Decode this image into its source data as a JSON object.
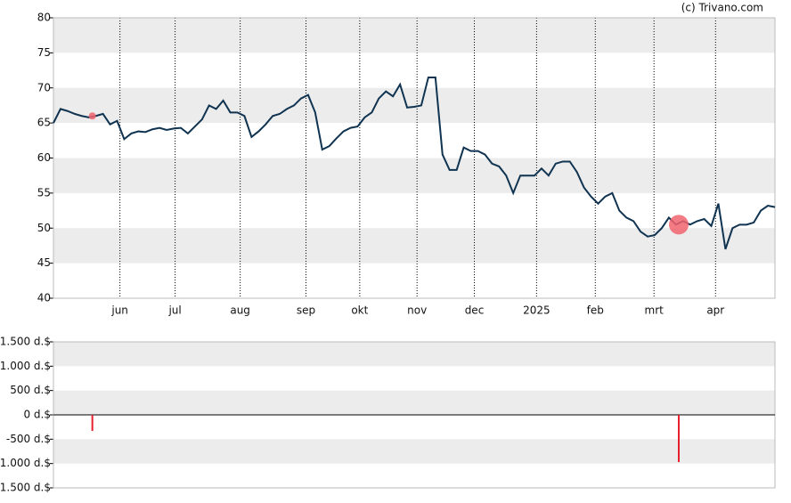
{
  "watermark": "(c) Trivano.com",
  "chart_data": [
    {
      "type": "line",
      "xlim": [
        0,
        102
      ],
      "xticks": [
        {
          "value": 9.4,
          "label": "jun"
        },
        {
          "value": 17.2,
          "label": "jul"
        },
        {
          "value": 26.4,
          "label": "aug"
        },
        {
          "value": 35.7,
          "label": "sep"
        },
        {
          "value": 43.3,
          "label": "okt"
        },
        {
          "value": 51.4,
          "label": "nov"
        },
        {
          "value": 59.5,
          "label": "dec"
        },
        {
          "value": 68.3,
          "label": "2025"
        },
        {
          "value": 76.6,
          "label": "feb"
        },
        {
          "value": 84.9,
          "label": "mrt"
        },
        {
          "value": 93.6,
          "label": "apr"
        }
      ],
      "ylim": [
        40,
        80
      ],
      "yticks": [
        40,
        45,
        50,
        55,
        60,
        65,
        70,
        75,
        80
      ],
      "grid": true,
      "series": [
        {
          "color": "#0f3350",
          "values": [
            65,
            67,
            66.7,
            66.3,
            66,
            65.8,
            66,
            66.3,
            64.8,
            65.3,
            62.7,
            63.5,
            63.8,
            63.7,
            64.1,
            64.3,
            64,
            64.2,
            64.3,
            63.5,
            64.5,
            65.5,
            67.5,
            67,
            68.2,
            66.5,
            66.5,
            66,
            63,
            63.8,
            64.8,
            66,
            66.3,
            67,
            67.5,
            68.5,
            69,
            66.5,
            61.2,
            61.7,
            62.8,
            63.8,
            64.3,
            64.5,
            65.8,
            66.5,
            68.5,
            69.5,
            68.8,
            70.5,
            67.2,
            67.3,
            67.5,
            71.5,
            71.5,
            60.5,
            58.3,
            58.3,
            61.5,
            61,
            61,
            60.5,
            59.2,
            58.8,
            57.5,
            55,
            57.5,
            57.5,
            57.5,
            58.5,
            57.5,
            59.2,
            59.5,
            59.5,
            58,
            55.8,
            54.5,
            53.5,
            54.5,
            55,
            52.5,
            51.5,
            51,
            49.5,
            48.8,
            49,
            50,
            51.5,
            50.5,
            51,
            50.5,
            51,
            51.3,
            50.3,
            53.5,
            47,
            50,
            50.5,
            50.5,
            50.8,
            52.5,
            53.2,
            53
          ]
        }
      ],
      "markers": {
        "color": "#f0646e",
        "x": [
          5.5,
          88.4
        ],
        "values": [
          66,
          50.5
        ]
      }
    },
    {
      "type": "bar",
      "xlim": [
        0,
        102
      ],
      "x": [
        5.5,
        88.4
      ],
      "values": [
        -330,
        -970
      ],
      "color": "#e8202e",
      "ylim": [
        -1500,
        1500
      ],
      "yticks": [
        {
          "value": -1500,
          "label": "-1.500 d.$"
        },
        {
          "value": -1000,
          "label": "-1.000 d.$"
        },
        {
          "value": -500,
          "label": "-500 d.$"
        },
        {
          "value": 0,
          "label": "0 d.$"
        },
        {
          "value": 500,
          "label": "500 d.$"
        },
        {
          "value": 1000,
          "label": "1.000 d.$"
        },
        {
          "value": 1500,
          "label": "1.500 d.$"
        }
      ],
      "grid": true
    }
  ]
}
